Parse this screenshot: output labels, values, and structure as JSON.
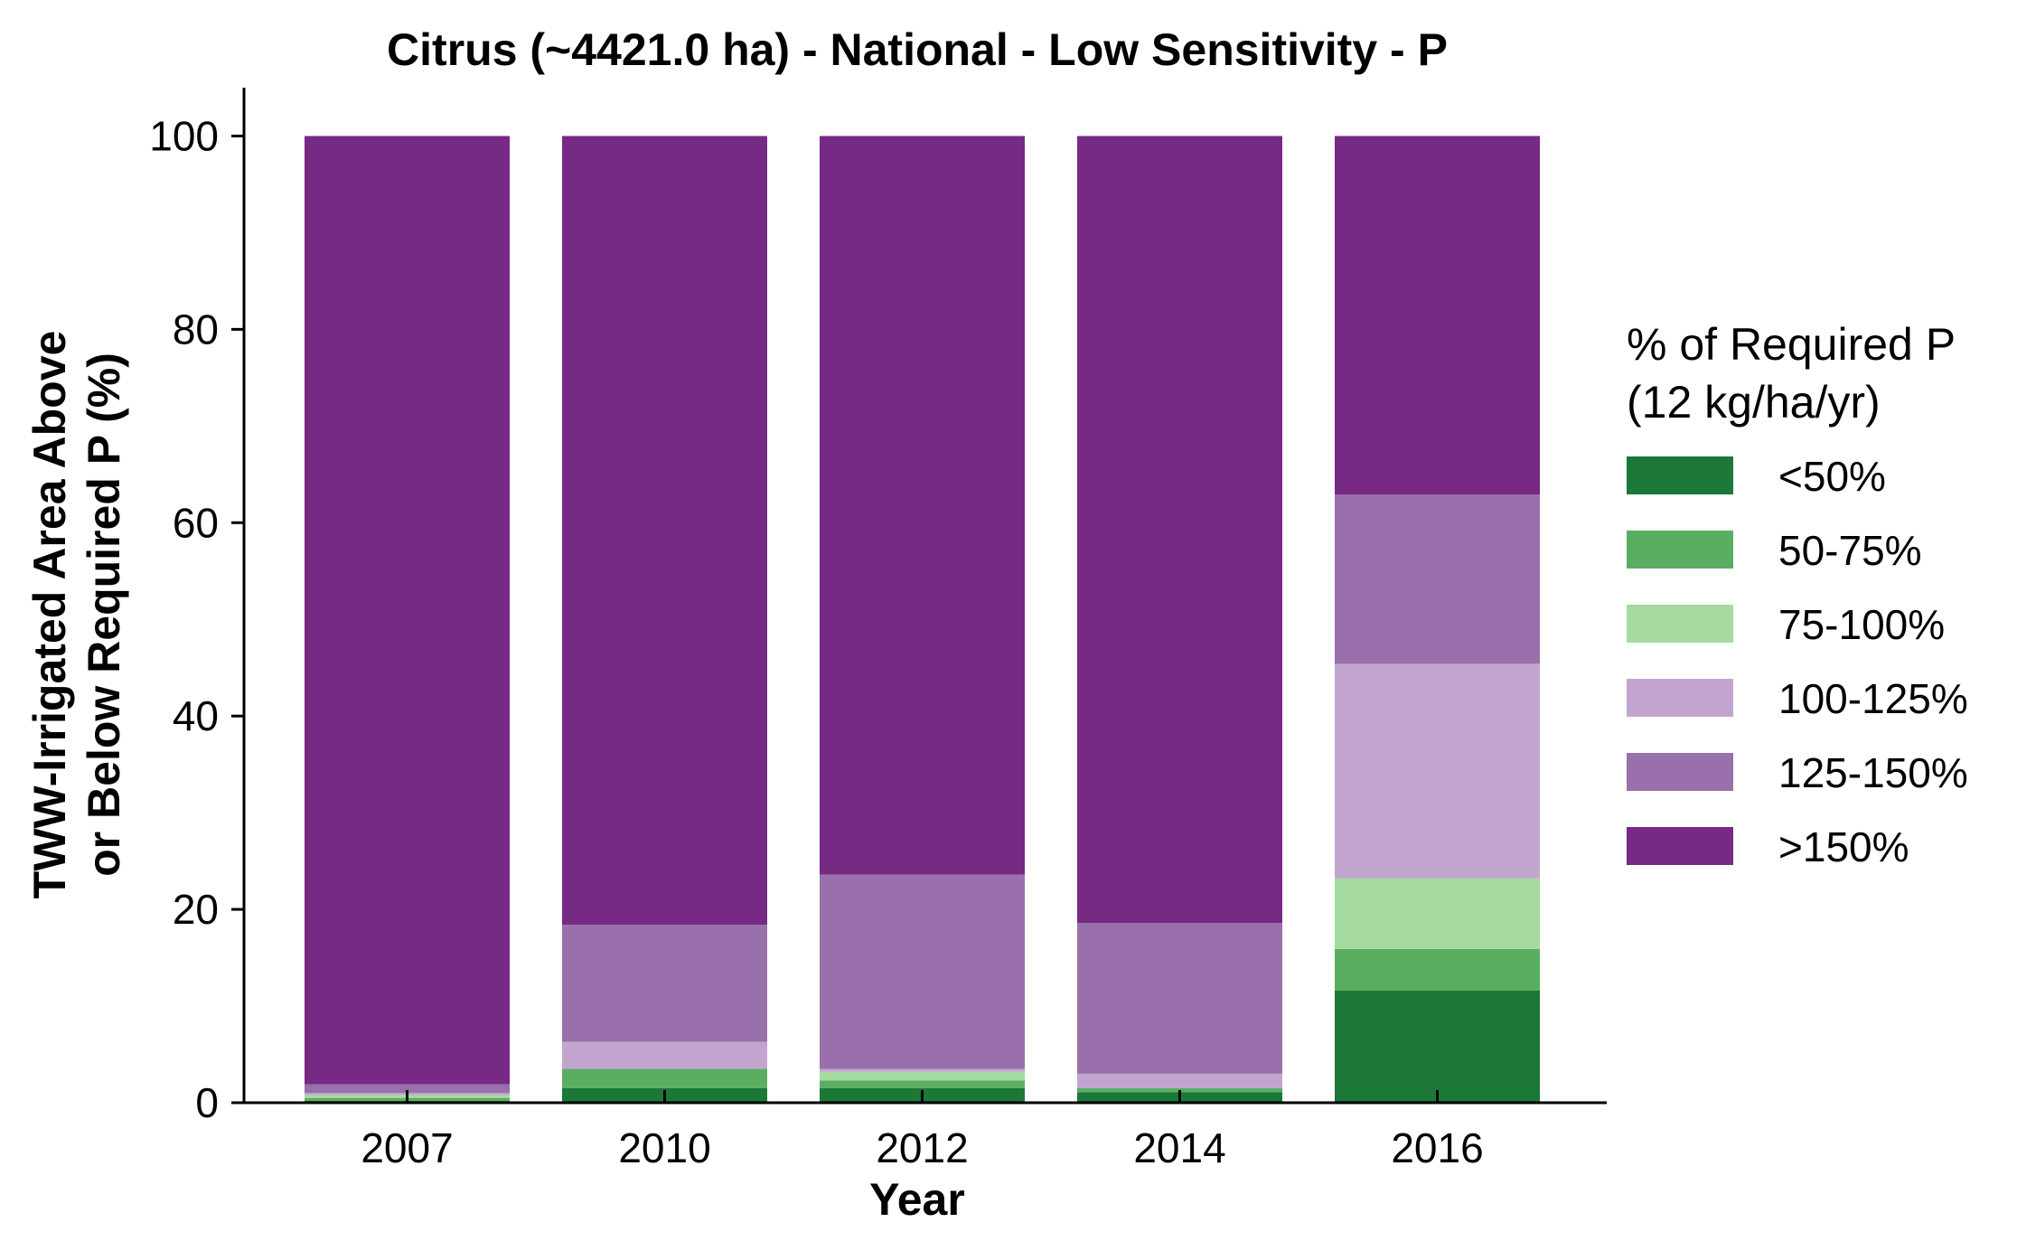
{
  "chart_data": {
    "type": "bar",
    "stacked": true,
    "title": "Citrus (~4421.0 ha) - National - Low Sensitivity - P",
    "xlabel": "Year",
    "ylabel_lines": [
      "TWW-Irrigated Area Above",
      "or Below Required P (%)"
    ],
    "ylim": [
      0,
      105
    ],
    "yticks": [
      0,
      20,
      40,
      60,
      80,
      100
    ],
    "categories": [
      "2007",
      "2010",
      "2012",
      "2014",
      "2016"
    ],
    "legend": {
      "title_lines": [
        "% of Required P",
        "(12 kg/ha/yr)"
      ],
      "placement": "right"
    },
    "series": [
      {
        "name": "<50%",
        "color": "#1b7837",
        "values": [
          0.2,
          1.5,
          1.5,
          1.1,
          11.6
        ]
      },
      {
        "name": "50-75%",
        "color": "#5aae61",
        "values": [
          0.3,
          2.0,
          0.8,
          0.4,
          4.3
        ]
      },
      {
        "name": "75-100%",
        "color": "#a6dba0",
        "values": [
          0.3,
          0.0,
          0.9,
          0.0,
          7.3
        ]
      },
      {
        "name": "100-125%",
        "color": "#c2a5cf",
        "values": [
          0.2,
          2.8,
          0.3,
          1.5,
          22.2
        ]
      },
      {
        "name": "125-150%",
        "color": "#9970ab",
        "values": [
          0.9,
          12.1,
          20.1,
          15.6,
          17.5
        ]
      },
      {
        "name": ">150%",
        "color": "#762a83",
        "values": [
          98.1,
          81.6,
          76.4,
          81.4,
          37.1
        ]
      }
    ]
  }
}
